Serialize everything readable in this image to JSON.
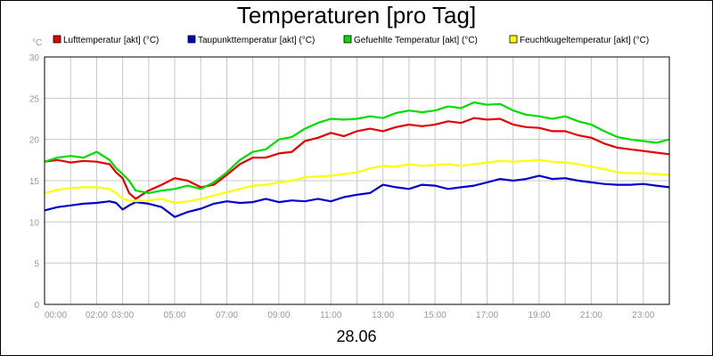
{
  "chart_data": {
    "type": "line",
    "title": "Temperaturen [pro Tag]",
    "ylabel": "°C",
    "xlabel": "28.06",
    "xlim": [
      0,
      24
    ],
    "ylim": [
      0,
      30
    ],
    "yticks": [
      0,
      5,
      10,
      15,
      20,
      25,
      30
    ],
    "xticks": [
      {
        "x": 0,
        "label": "00:00"
      },
      {
        "x": 2,
        "label": "02:00"
      },
      {
        "x": 3,
        "label": "03:00"
      },
      {
        "x": 5,
        "label": "05:00"
      },
      {
        "x": 7,
        "label": "07:00"
      },
      {
        "x": 9,
        "label": "09:00"
      },
      {
        "x": 11,
        "label": "11:00"
      },
      {
        "x": 13,
        "label": "13:00"
      },
      {
        "x": 15,
        "label": "15:00"
      },
      {
        "x": 17,
        "label": "17:00"
      },
      {
        "x": 19,
        "label": "19:00"
      },
      {
        "x": 21,
        "label": "21:00"
      },
      {
        "x": 23,
        "label": "23:00"
      }
    ],
    "grid": true,
    "legend_position": "top",
    "x": [
      0,
      0.5,
      1,
      1.5,
      2,
      2.5,
      2.75,
      3,
      3.25,
      3.5,
      4,
      4.5,
      5,
      5.5,
      6,
      6.5,
      7,
      7.5,
      8,
      8.5,
      9,
      9.5,
      10,
      10.5,
      11,
      11.5,
      12,
      12.5,
      13,
      13.5,
      14,
      14.5,
      15,
      15.5,
      16,
      16.5,
      17,
      17.5,
      18,
      18.5,
      19,
      19.5,
      20,
      20.5,
      21,
      21.5,
      22,
      22.5,
      23,
      23.5,
      24
    ],
    "series": [
      {
        "name": "Lufttemperatur [akt] (°C)",
        "color": "#e60000",
        "values": [
          17.3,
          17.5,
          17.2,
          17.4,
          17.3,
          17.0,
          16.0,
          15.3,
          13.5,
          12.8,
          13.8,
          14.5,
          15.3,
          15.0,
          14.2,
          14.5,
          15.7,
          17.0,
          17.8,
          17.8,
          18.3,
          18.5,
          19.8,
          20.2,
          20.8,
          20.4,
          21.0,
          21.3,
          21.0,
          21.5,
          21.8,
          21.6,
          21.8,
          22.2,
          22.0,
          22.6,
          22.4,
          22.5,
          21.8,
          21.5,
          21.4,
          21.0,
          21.0,
          20.5,
          20.2,
          19.5,
          19.0,
          18.8,
          18.6,
          18.4,
          18.2
        ]
      },
      {
        "name": "Taupunkttemperatur [akt] (°C)",
        "color": "#0000cc",
        "values": [
          11.4,
          11.8,
          12.0,
          12.2,
          12.3,
          12.5,
          12.3,
          11.5,
          12.0,
          12.4,
          12.2,
          11.8,
          10.6,
          11.2,
          11.6,
          12.2,
          12.5,
          12.3,
          12.4,
          12.8,
          12.4,
          12.6,
          12.5,
          12.8,
          12.5,
          13.0,
          13.3,
          13.5,
          14.5,
          14.2,
          14.0,
          14.5,
          14.4,
          14.0,
          14.2,
          14.4,
          14.8,
          15.2,
          15.0,
          15.2,
          15.6,
          15.2,
          15.3,
          15.0,
          14.8,
          14.6,
          14.5,
          14.5,
          14.6,
          14.4,
          14.2
        ]
      },
      {
        "name": "Gefuehlte Temperatur [akt] (°C)",
        "color": "#00dd00",
        "values": [
          17.3,
          17.8,
          18.0,
          17.8,
          18.5,
          17.5,
          16.5,
          15.8,
          15.0,
          13.8,
          13.5,
          13.8,
          14.0,
          14.4,
          14.0,
          14.8,
          16.0,
          17.5,
          18.5,
          18.8,
          20.0,
          20.3,
          21.3,
          22.0,
          22.5,
          22.4,
          22.5,
          22.8,
          22.6,
          23.2,
          23.5,
          23.3,
          23.5,
          24.0,
          23.8,
          24.5,
          24.2,
          24.3,
          23.5,
          23.0,
          22.8,
          22.5,
          22.8,
          22.2,
          21.8,
          21.0,
          20.3,
          20.0,
          19.8,
          19.6,
          20.0
        ]
      },
      {
        "name": "Feuchtkugeltemperatur [akt] (°C)",
        "color": "#ffff00",
        "values": [
          13.5,
          13.9,
          14.1,
          14.2,
          14.2,
          14.0,
          13.5,
          12.8,
          12.6,
          12.5,
          12.6,
          12.8,
          12.3,
          12.5,
          12.8,
          13.2,
          13.6,
          14.0,
          14.4,
          14.5,
          14.8,
          15.0,
          15.4,
          15.5,
          15.6,
          15.8,
          16.0,
          16.5,
          16.8,
          16.7,
          17.0,
          16.8,
          16.9,
          17.0,
          16.8,
          17.0,
          17.2,
          17.4,
          17.3,
          17.4,
          17.5,
          17.3,
          17.2,
          17.0,
          16.7,
          16.4,
          16.0,
          15.9,
          15.9,
          15.8,
          15.7
        ]
      }
    ]
  }
}
